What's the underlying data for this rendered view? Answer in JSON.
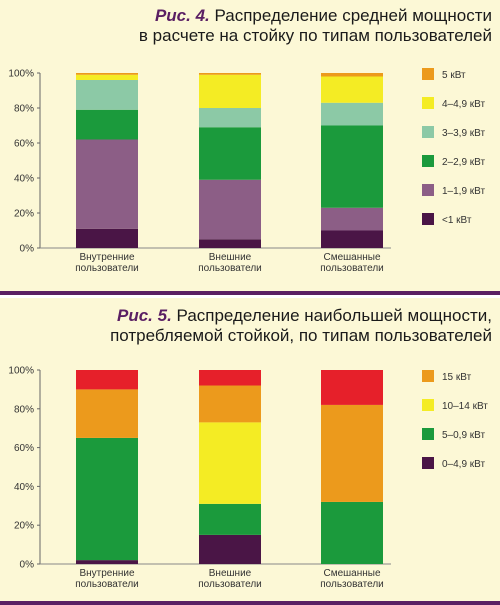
{
  "figure4": {
    "fig_label": "Рис. 4.",
    "title_line1": "Распределение средней мощности",
    "title_line2": "в расчете на стойку по типам пользователей"
  },
  "figure5": {
    "fig_label": "Рис. 5.",
    "title_line1": "Распределение наибольшей мощности,",
    "title_line2": "потребляемой стойкой, по типам пользователей"
  },
  "chart_data": [
    {
      "type": "bar",
      "stacked": true,
      "categories": [
        [
          "Внутренние",
          "пользователи"
        ],
        [
          "Внешние",
          "пользователи"
        ],
        [
          "Смешанные",
          "пользователи"
        ]
      ],
      "yticks": [
        "0%",
        "20%",
        "40%",
        "60%",
        "80%",
        "100%"
      ],
      "ylim": [
        0,
        100
      ],
      "legend_position": "right",
      "series": [
        {
          "name": "<1 кВт",
          "color": "#4a1546",
          "values": [
            11,
            5,
            10
          ]
        },
        {
          "name": "1–1,9 кВт",
          "color": "#8c5e86",
          "values": [
            51,
            34,
            13
          ]
        },
        {
          "name": "2–2,9 кВт",
          "color": "#1b9a3c",
          "values": [
            17,
            30,
            47
          ]
        },
        {
          "name": "3–3,9 кВт",
          "color": "#8cc9a6",
          "values": [
            17,
            11,
            13
          ]
        },
        {
          "name": "4–4,9 кВт",
          "color": "#f4ec24",
          "values": [
            3,
            19,
            15
          ]
        },
        {
          "name": "5 кВт",
          "color": "#ec9a1c",
          "values": [
            1,
            1,
            2
          ]
        }
      ]
    },
    {
      "type": "bar",
      "stacked": true,
      "categories": [
        [
          "Внутренние",
          "пользователи"
        ],
        [
          "Внешние",
          "пользователи"
        ],
        [
          "Смешанные",
          "пользователи"
        ]
      ],
      "yticks": [
        "0%",
        "20%",
        "40%",
        "60%",
        "80%",
        "100%"
      ],
      "ylim": [
        0,
        100
      ],
      "legend_position": "right",
      "series": [
        {
          "name": "0–4,9 кВт",
          "color": "#4a1546",
          "values": [
            2,
            15,
            0
          ]
        },
        {
          "name": "5–0,9 кВт",
          "color": "#1b9a3c",
          "values": [
            63,
            16,
            32
          ]
        },
        {
          "name": "10–14 кВт",
          "color": "#f4ec24",
          "values": [
            0,
            42,
            0
          ]
        },
        {
          "name": "15 кВт",
          "color": "#ec9a1c",
          "values": [
            25,
            19,
            50
          ]
        },
        {
          "name": "",
          "color": "#e6202a",
          "values": [
            10,
            8,
            18
          ]
        }
      ]
    }
  ]
}
